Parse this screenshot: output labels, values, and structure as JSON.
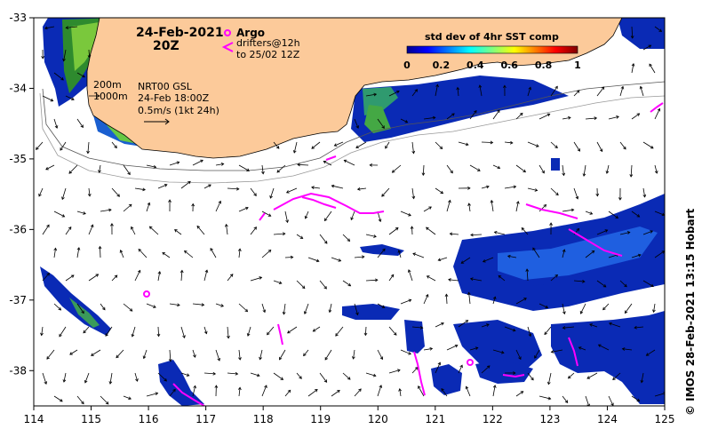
{
  "map": {
    "date_title": "24-Feb-2021",
    "time_title": "20Z",
    "lon_ticks": [
      "114",
      "115",
      "116",
      "117",
      "118",
      "119",
      "120",
      "121",
      "122",
      "123",
      "124",
      "125"
    ],
    "lat_ticks": [
      "-33",
      "-34",
      "-35",
      "-36",
      "-37",
      "-38"
    ],
    "lon_range": [
      114,
      125
    ],
    "lat_range": [
      -38.5,
      -33
    ]
  },
  "legend": {
    "argo_label": "Argo",
    "drifters_label_1": "drifters@12h",
    "drifters_label_2": "to 25/02 12Z",
    "colorbar_title": "std dev of 4hr SST comp",
    "colorbar_ticks": [
      "0",
      "0.2",
      "0.4",
      "0.6",
      "0.8",
      "1"
    ],
    "argo_color": "#ff00ff",
    "drifter_color": "#ff00ff",
    "land_color": "#fcca9a"
  },
  "info": {
    "isobath_1": "200m",
    "isobath_2": "1000m",
    "product": "NRT00 GSL",
    "product_time": "24-Feb 18:00Z",
    "scale": "0.5m/s (1kt 24h)"
  },
  "credit": "© IMOS 28-Feb-2021 13:15 Hobart"
}
